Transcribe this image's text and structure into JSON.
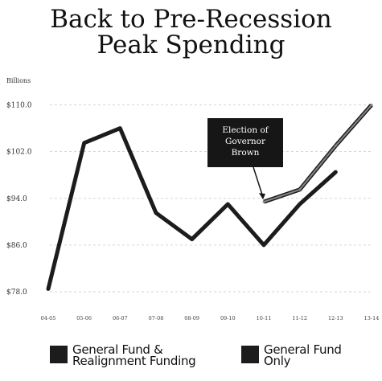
{
  "chart_data": {
    "type": "line",
    "title_line1": "Back to Pre-Recession",
    "title_line2": "Peak Spending",
    "y_unit_label": "Billions",
    "ylim": [
      78.0,
      112.0
    ],
    "y_ticks": [
      78.0,
      86.0,
      94.0,
      102.0,
      110.0
    ],
    "y_tick_labels": [
      "$78.0",
      "$86.0",
      "$94.0",
      "$102.0",
      "$110.0"
    ],
    "categories": [
      "04-05",
      "05-06",
      "06-07",
      "07-08",
      "08-09",
      "09-10",
      "10-11",
      "11-12",
      "12-13",
      "13-14"
    ],
    "series": [
      {
        "name": "General Fund & Realignment Funding",
        "color": "#888888",
        "values": [
          null,
          null,
          null,
          null,
          null,
          null,
          93.4,
          95.5,
          103.0,
          110.0
        ]
      },
      {
        "name": "General Fund Only",
        "color": "#1c1c1c",
        "values": [
          78.5,
          103.5,
          106.0,
          91.5,
          87.0,
          93.0,
          86.0,
          93.0,
          98.5,
          null
        ]
      }
    ],
    "annotation": {
      "lines": [
        "Election of",
        "Governor",
        "Brown"
      ],
      "points_to": "10-11"
    },
    "grid": "horizontal dashed",
    "legend_placement": "bottom"
  },
  "legend": [
    {
      "line1": "General Fund &",
      "line2": "Realignment Funding"
    },
    {
      "line1": "General Fund",
      "line2": "Only"
    }
  ]
}
